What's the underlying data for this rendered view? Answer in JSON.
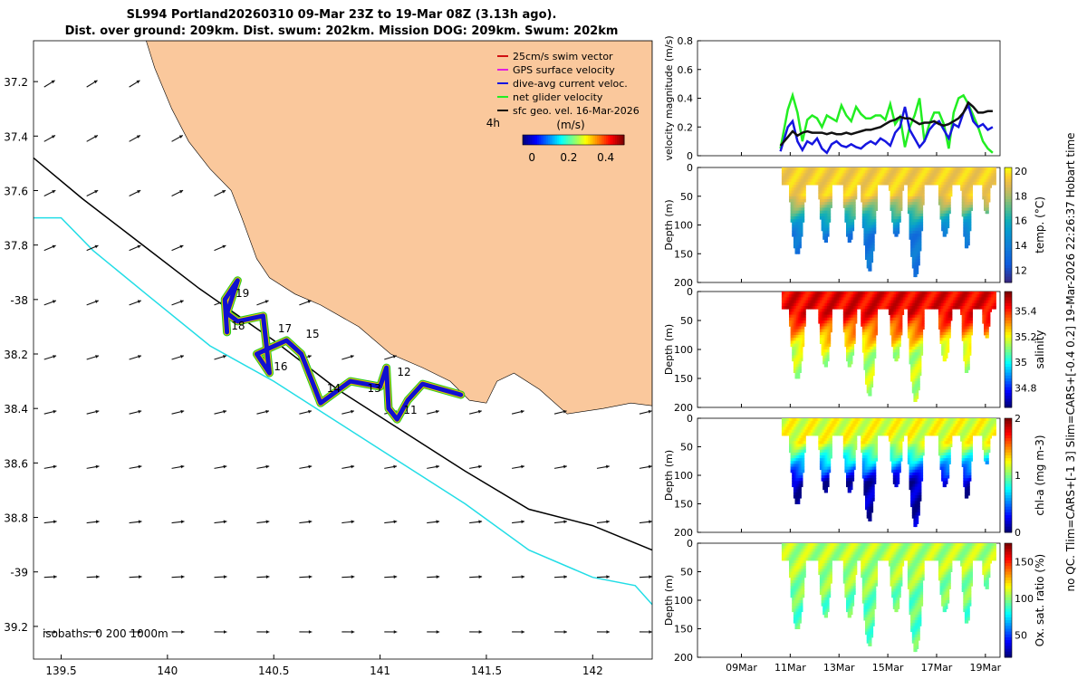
{
  "title": {
    "line1": "SL994 Portland20260310 09-Mar 23Z to 19-Mar 08Z (3.13h ago).",
    "line2": "Dist. over ground: 209km. Dist. swum: 202km. Mission DOG: 209km. Swum: 202km"
  },
  "side_note": "no QC. Tlim=CARS+[-1 3] Slim=CARS+[-0.4 0.2] 19-Mar-2026 22:26:37 Hobart time",
  "colors": {
    "land": "#fac89c",
    "shelf_line": "#000000",
    "slope_line": "#22dde6",
    "track_blue": "#1010d0",
    "track_yellow": "#f0c000",
    "track_green": "#22cc22",
    "vel_green": "#22ee22",
    "vel_blue": "#1515e0",
    "vel_black": "#111111"
  },
  "chart_data": [
    {
      "type": "map",
      "name": "glider-track-map",
      "xlim": [
        139.37,
        142.28
      ],
      "ylim": [
        -39.32,
        -37.05
      ],
      "xticks": [
        139.5,
        140,
        140.5,
        141,
        141.5,
        142
      ],
      "xtick_labels": [
        "139.5",
        "140",
        "140.5",
        "141",
        "141.5",
        "142"
      ],
      "yticks": [
        -37.2,
        -37.4,
        -37.6,
        -37.8,
        -38.0,
        -38.2,
        -38.4,
        -38.6,
        -38.8,
        -39.0,
        -39.2
      ],
      "ytick_labels": [
        "37.2",
        "37.4",
        "37.6",
        "37.8",
        "-38",
        "38.2",
        "38.4",
        "38.6",
        "38.8",
        "-39",
        "39.2"
      ],
      "isobath_label": "isobaths: 0   200  1000m",
      "time_scale_label": "4h",
      "legend": [
        {
          "label": "25cm/s swim vector",
          "color": "#d01010"
        },
        {
          "label": "GPS surface velocity",
          "color": "#e020e0"
        },
        {
          "label": "dive-avg current veloc.",
          "color": "#1515e0"
        },
        {
          "label": "net glider velocity",
          "color": "#22ee22"
        },
        {
          "label": "sfc geo. vel. 16-Mar-2026",
          "color": "#111111"
        }
      ],
      "colorbar": {
        "label": "(m/s)",
        "ticks": [
          0,
          0.2,
          0.4
        ],
        "tick_labels": [
          "0",
          "0.2",
          "0.4"
        ],
        "range": [
          -0.05,
          0.5
        ]
      },
      "coast": [
        [
          139.9,
          -37.05
        ],
        [
          139.94,
          -37.15
        ],
        [
          140.02,
          -37.3
        ],
        [
          140.1,
          -37.42
        ],
        [
          140.2,
          -37.52
        ],
        [
          140.3,
          -37.6
        ],
        [
          140.35,
          -37.7
        ],
        [
          140.42,
          -37.85
        ],
        [
          140.48,
          -37.92
        ],
        [
          140.6,
          -37.98
        ],
        [
          140.72,
          -38.02
        ],
        [
          140.9,
          -38.1
        ],
        [
          141.05,
          -38.2
        ],
        [
          141.2,
          -38.25
        ],
        [
          141.33,
          -38.3
        ],
        [
          141.42,
          -38.37
        ],
        [
          141.5,
          -38.38
        ],
        [
          141.55,
          -38.3
        ],
        [
          141.63,
          -38.27
        ],
        [
          141.75,
          -38.33
        ],
        [
          141.88,
          -38.42
        ],
        [
          142.05,
          -38.4
        ],
        [
          142.18,
          -38.38
        ],
        [
          142.28,
          -38.39
        ]
      ],
      "isobath_200": [
        [
          139.37,
          -37.48
        ],
        [
          139.6,
          -37.63
        ],
        [
          139.85,
          -37.78
        ],
        [
          140.15,
          -37.96
        ],
        [
          140.5,
          -38.15
        ],
        [
          140.8,
          -38.33
        ],
        [
          141.1,
          -38.48
        ],
        [
          141.4,
          -38.63
        ],
        [
          141.7,
          -38.77
        ],
        [
          142.0,
          -38.83
        ],
        [
          142.28,
          -38.92
        ]
      ],
      "isobath_1000": [
        [
          139.37,
          -37.7
        ],
        [
          139.5,
          -37.7
        ],
        [
          139.65,
          -37.82
        ],
        [
          139.9,
          -37.98
        ],
        [
          140.2,
          -38.17
        ],
        [
          140.5,
          -38.3
        ],
        [
          140.8,
          -38.45
        ],
        [
          141.1,
          -38.6
        ],
        [
          141.4,
          -38.75
        ],
        [
          141.7,
          -38.92
        ],
        [
          142.0,
          -39.02
        ],
        [
          142.2,
          -39.05
        ],
        [
          142.28,
          -39.12
        ]
      ],
      "track": [
        [
          140.28,
          -38.12
        ],
        [
          140.27,
          -38.0
        ],
        [
          140.33,
          -37.93
        ],
        [
          140.28,
          -38.05
        ],
        [
          140.33,
          -38.08
        ],
        [
          140.45,
          -38.06
        ],
        [
          140.48,
          -38.27
        ],
        [
          140.42,
          -38.2
        ],
        [
          140.56,
          -38.15
        ],
        [
          140.63,
          -38.2
        ],
        [
          140.72,
          -38.38
        ],
        [
          140.86,
          -38.3
        ],
        [
          141.0,
          -38.32
        ],
        [
          141.03,
          -38.25
        ],
        [
          141.04,
          -38.4
        ],
        [
          141.08,
          -38.44
        ],
        [
          141.13,
          -38.37
        ],
        [
          141.2,
          -38.31
        ],
        [
          141.38,
          -38.35
        ]
      ],
      "waypoint_labels": [
        {
          "text": "19",
          "lon": 140.32,
          "lat": -37.99
        },
        {
          "text": "18",
          "lon": 140.3,
          "lat": -38.11
        },
        {
          "text": "17",
          "lon": 140.52,
          "lat": -38.12
        },
        {
          "text": "15",
          "lon": 140.65,
          "lat": -38.14
        },
        {
          "text": "16",
          "lon": 140.5,
          "lat": -38.26
        },
        {
          "text": "14",
          "lon": 140.75,
          "lat": -38.34
        },
        {
          "text": "13",
          "lon": 140.94,
          "lat": -38.34
        },
        {
          "text": "12",
          "lon": 141.08,
          "lat": -38.28
        },
        {
          "text": "11",
          "lon": 141.11,
          "lat": -38.42
        }
      ]
    },
    {
      "type": "line",
      "name": "velocity-magnitude",
      "ylabel": "velocity magnitude (m/s)",
      "ylim": [
        0,
        0.8
      ],
      "yticks": [
        0,
        0.2,
        0.4,
        0.6,
        0.8
      ],
      "ytick_labels": [
        "0",
        "0.2",
        "0.4",
        "0.6",
        "0.8"
      ],
      "xlim": [
        7.2,
        19.6
      ],
      "series": [
        {
          "name": "net glider velocity",
          "color": "#22ee22",
          "x": [
            10.6,
            10.9,
            11.1,
            11.3,
            11.5,
            11.7,
            11.9,
            12.1,
            12.3,
            12.5,
            12.7,
            12.9,
            13.1,
            13.3,
            13.5,
            13.7,
            13.9,
            14.1,
            14.3,
            14.5,
            14.7,
            14.9,
            15.1,
            15.3,
            15.5,
            15.7,
            15.9,
            16.1,
            16.3,
            16.5,
            16.7,
            16.9,
            17.1,
            17.3,
            17.5,
            17.7,
            17.9,
            18.1,
            18.3,
            18.5,
            18.7,
            18.9,
            19.1,
            19.3
          ],
          "values": [
            0.05,
            0.32,
            0.42,
            0.3,
            0.1,
            0.25,
            0.28,
            0.26,
            0.2,
            0.28,
            0.26,
            0.24,
            0.35,
            0.28,
            0.24,
            0.34,
            0.29,
            0.26,
            0.26,
            0.28,
            0.28,
            0.25,
            0.36,
            0.22,
            0.27,
            0.06,
            0.2,
            0.28,
            0.4,
            0.1,
            0.22,
            0.3,
            0.3,
            0.22,
            0.05,
            0.3,
            0.4,
            0.42,
            0.36,
            0.28,
            0.2,
            0.1,
            0.05,
            0.02
          ]
        },
        {
          "name": "dive-avg current",
          "color": "#1515e0",
          "x": [
            10.6,
            10.9,
            11.1,
            11.3,
            11.5,
            11.7,
            11.9,
            12.1,
            12.3,
            12.5,
            12.7,
            12.9,
            13.1,
            13.3,
            13.5,
            13.7,
            13.9,
            14.1,
            14.3,
            14.5,
            14.7,
            14.9,
            15.1,
            15.3,
            15.5,
            15.7,
            15.9,
            16.1,
            16.3,
            16.5,
            16.7,
            16.9,
            17.1,
            17.3,
            17.5,
            17.7,
            17.9,
            18.1,
            18.3,
            18.5,
            18.7,
            18.9,
            19.1,
            19.3
          ],
          "values": [
            0.03,
            0.2,
            0.24,
            0.1,
            0.04,
            0.1,
            0.08,
            0.12,
            0.05,
            0.02,
            0.08,
            0.1,
            0.07,
            0.06,
            0.08,
            0.06,
            0.05,
            0.08,
            0.1,
            0.08,
            0.12,
            0.1,
            0.07,
            0.16,
            0.2,
            0.34,
            0.18,
            0.12,
            0.06,
            0.1,
            0.18,
            0.22,
            0.24,
            0.18,
            0.12,
            0.22,
            0.2,
            0.3,
            0.35,
            0.24,
            0.2,
            0.22,
            0.18,
            0.2
          ]
        },
        {
          "name": "sfc geo. vel.",
          "color": "#111111",
          "x": [
            10.6,
            10.9,
            11.1,
            11.3,
            11.5,
            11.7,
            11.9,
            12.1,
            12.3,
            12.5,
            12.7,
            12.9,
            13.1,
            13.3,
            13.5,
            13.7,
            13.9,
            14.1,
            14.3,
            14.5,
            14.7,
            14.9,
            15.1,
            15.3,
            15.5,
            15.7,
            15.9,
            16.1,
            16.3,
            16.5,
            16.7,
            16.9,
            17.1,
            17.3,
            17.5,
            17.7,
            17.9,
            18.1,
            18.3,
            18.5,
            18.7,
            18.9,
            19.1,
            19.3
          ],
          "values": [
            0.07,
            0.13,
            0.17,
            0.14,
            0.16,
            0.17,
            0.16,
            0.16,
            0.16,
            0.15,
            0.16,
            0.15,
            0.15,
            0.16,
            0.15,
            0.16,
            0.17,
            0.18,
            0.18,
            0.19,
            0.2,
            0.22,
            0.24,
            0.25,
            0.27,
            0.26,
            0.26,
            0.24,
            0.22,
            0.23,
            0.23,
            0.24,
            0.22,
            0.21,
            0.22,
            0.24,
            0.26,
            0.3,
            0.37,
            0.34,
            0.3,
            0.3,
            0.31,
            0.31
          ]
        }
      ]
    },
    {
      "type": "heatmap",
      "name": "temperature",
      "ylabel": "Depth (m)",
      "ylim": [
        0,
        200
      ],
      "yticks": [
        0,
        50,
        100,
        150,
        200
      ],
      "ytick_labels": [
        "0",
        "50",
        "100",
        "150",
        "200"
      ],
      "cbar_label": "temp. (°C)",
      "cbar_ticks": [
        12,
        14,
        16,
        18,
        20
      ],
      "cbar_tick_labels": [
        "12",
        "14",
        "16",
        "18",
        "20"
      ],
      "cbar_range": [
        11,
        20.3
      ],
      "surface_value": 19.5,
      "deep_value": 13.5,
      "mixed_layer_depth": 45
    },
    {
      "type": "heatmap",
      "name": "salinity",
      "ylabel": "Depth (m)",
      "ylim": [
        0,
        200
      ],
      "yticks": [
        0,
        50,
        100,
        150,
        200
      ],
      "ytick_labels": [
        "0",
        "50",
        "100",
        "150",
        "200"
      ],
      "cbar_label": "salinity",
      "cbar_ticks": [
        34.8,
        35,
        35.2,
        35.4
      ],
      "cbar_tick_labels": [
        "34.8",
        "35",
        "35.2",
        "35.4"
      ],
      "cbar_range": [
        34.65,
        35.55
      ],
      "surface_value": 35.45,
      "deep_value": 35.15,
      "mixed_layer_depth": 35
    },
    {
      "type": "heatmap",
      "name": "chlorophyll",
      "ylabel": "Depth (m)",
      "ylim": [
        0,
        200
      ],
      "yticks": [
        0,
        50,
        100,
        150,
        200
      ],
      "ytick_labels": [
        "0",
        "50",
        "100",
        "150",
        "200"
      ],
      "cbar_label": "chl-a (mg m-3)",
      "cbar_ticks": [
        0,
        1,
        2
      ],
      "cbar_tick_labels": [
        "0",
        "1",
        "2"
      ],
      "cbar_range": [
        0,
        2
      ],
      "surface_value": 1.2,
      "deep_value": 0.1,
      "mixed_layer_depth": 40
    },
    {
      "type": "heatmap",
      "name": "oxygen",
      "ylabel": "Depth (m)",
      "ylim": [
        0,
        200
      ],
      "yticks": [
        0,
        50,
        100,
        150,
        200
      ],
      "ytick_labels": [
        "0",
        "50",
        "100",
        "150",
        "200"
      ],
      "cbar_label": "Ox. sat. ratio (%)",
      "cbar_ticks": [
        50,
        100,
        150
      ],
      "cbar_tick_labels": [
        "50",
        "100",
        "150"
      ],
      "cbar_range": [
        20,
        175
      ],
      "surface_value": 105,
      "deep_value": 92,
      "mixed_layer_depth": 40,
      "xticks": [
        9,
        11,
        13,
        15,
        17,
        19
      ],
      "xtick_labels": [
        "09Mar",
        "11Mar",
        "13Mar",
        "15Mar",
        "17Mar",
        "19Mar"
      ]
    }
  ],
  "profile_time": {
    "xlim": [
      7.2,
      19.6
    ],
    "start": 10.65,
    "end": 19.35,
    "dips": [
      {
        "center": 11.25,
        "depth": 150,
        "width": 0.7
      },
      {
        "center": 12.4,
        "depth": 130,
        "width": 0.6
      },
      {
        "center": 13.4,
        "depth": 130,
        "width": 0.6
      },
      {
        "center": 14.2,
        "depth": 180,
        "width": 0.7
      },
      {
        "center": 15.3,
        "depth": 120,
        "width": 0.6
      },
      {
        "center": 16.1,
        "depth": 190,
        "width": 0.7
      },
      {
        "center": 17.3,
        "depth": 120,
        "width": 0.6
      },
      {
        "center": 18.2,
        "depth": 140,
        "width": 0.5
      },
      {
        "center": 19.0,
        "depth": 80,
        "width": 0.4
      }
    ]
  }
}
